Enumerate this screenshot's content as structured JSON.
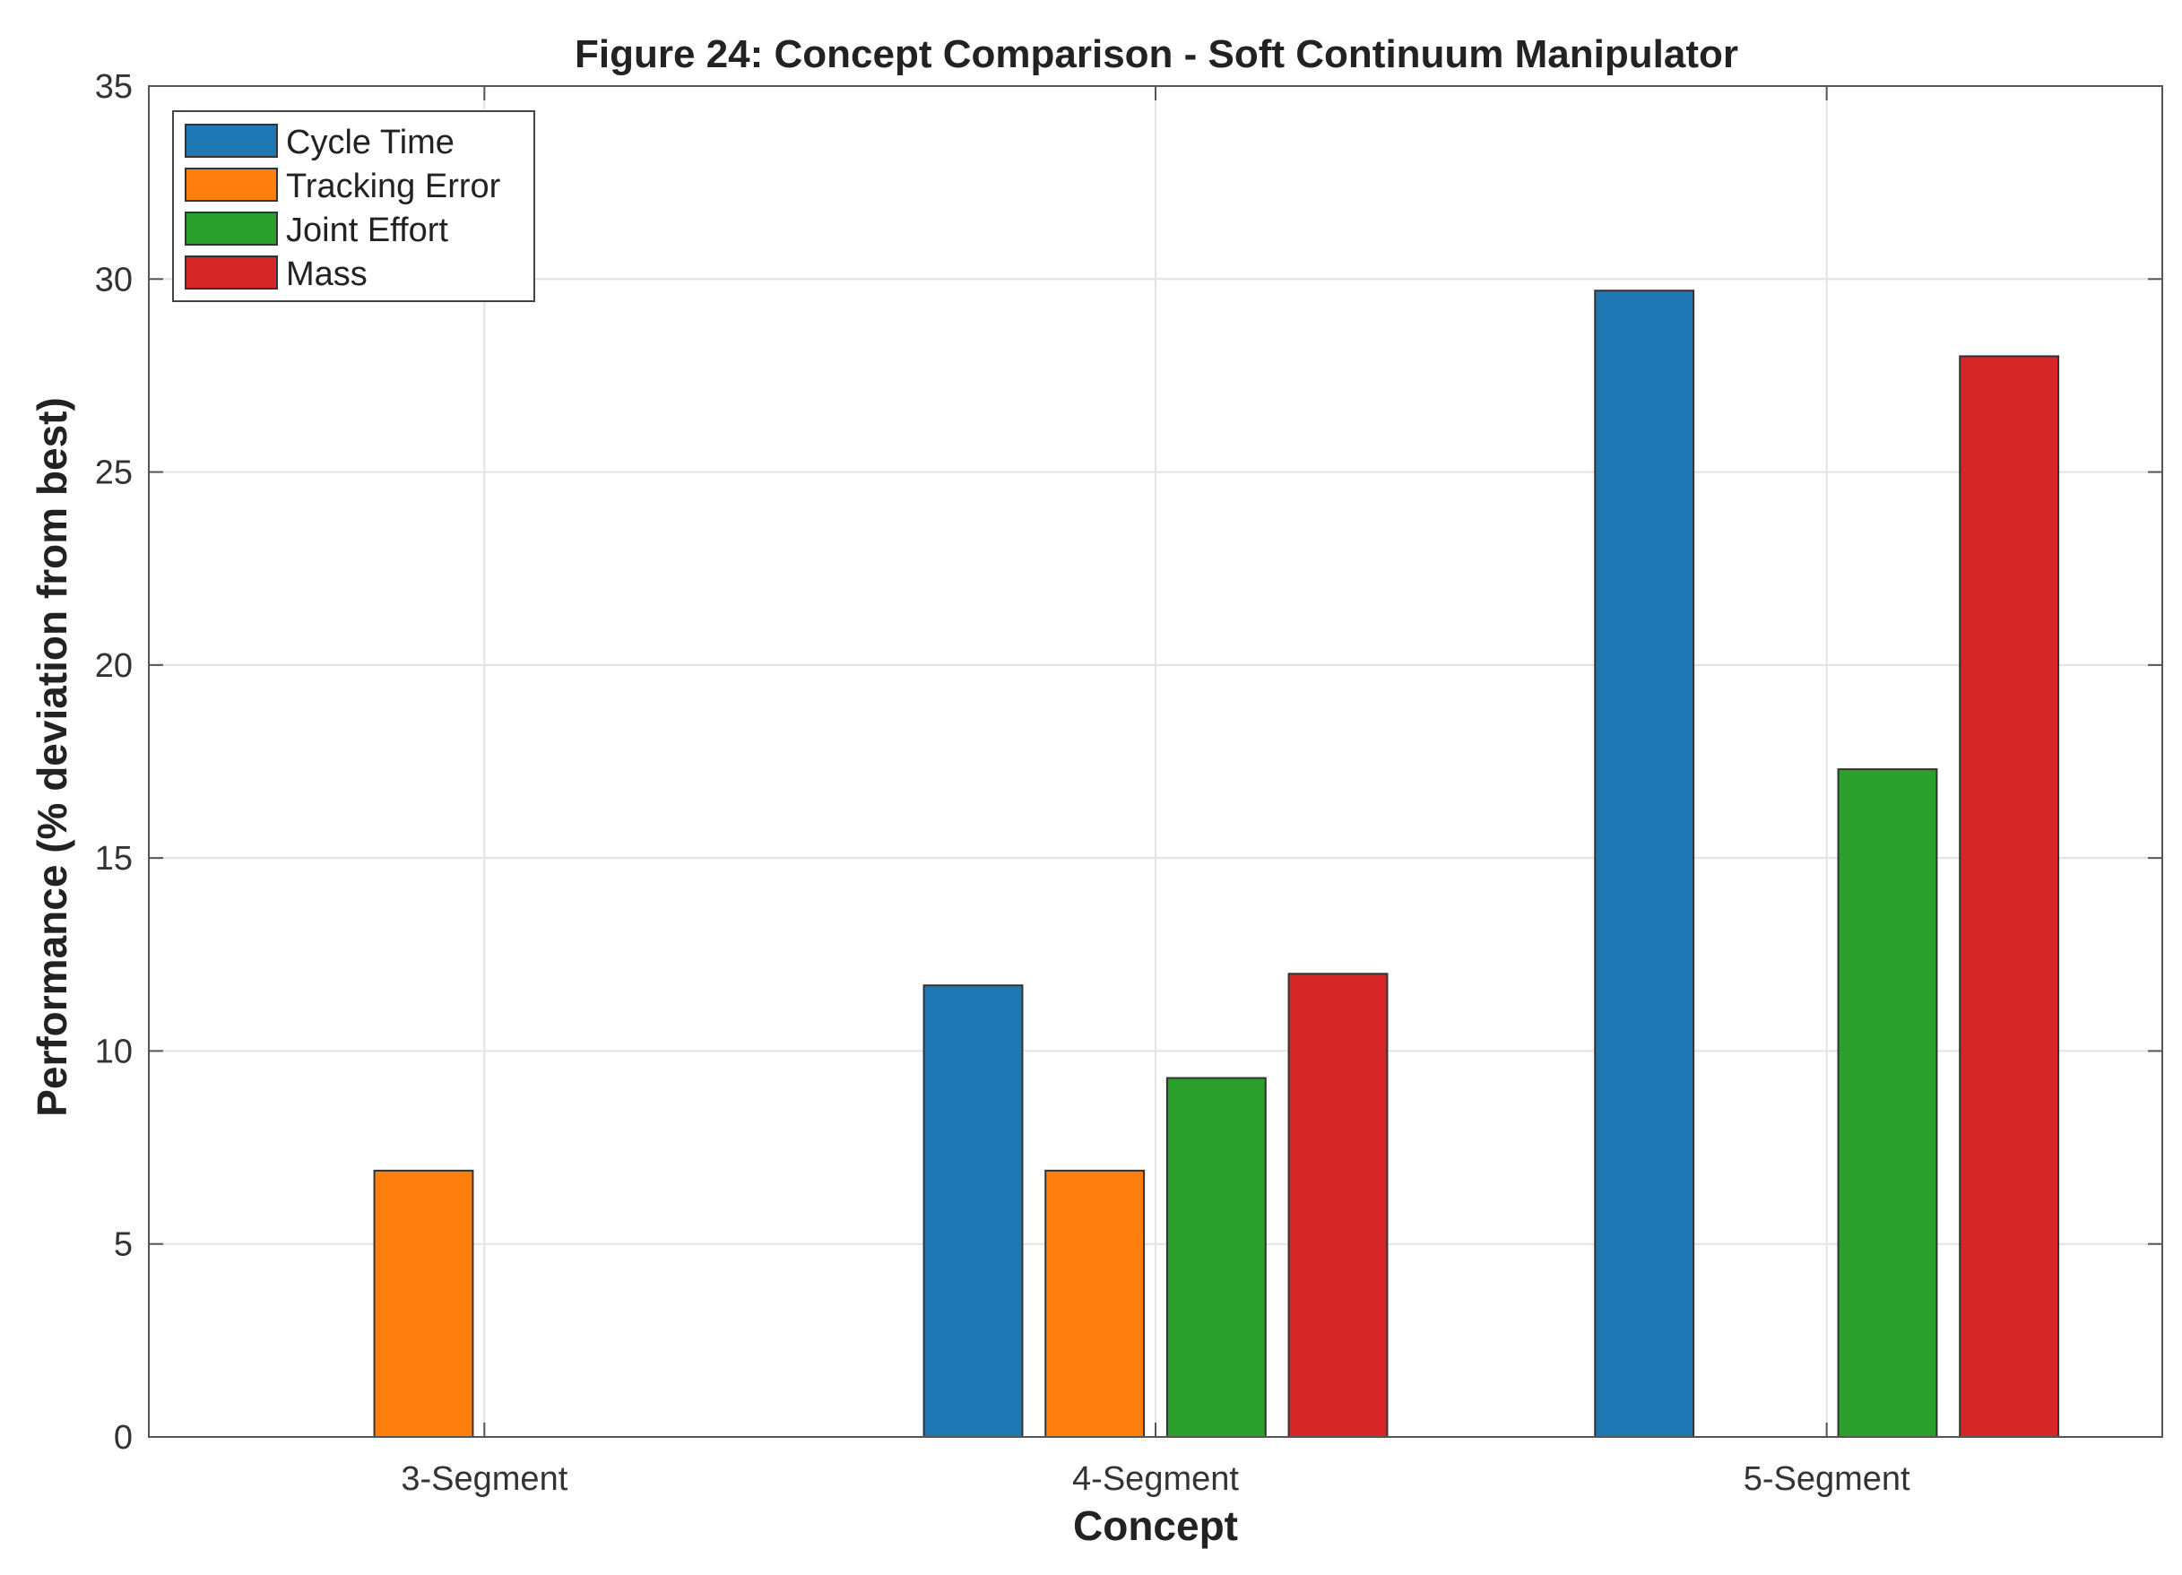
{
  "chart_data": {
    "type": "bar",
    "title": "Figure 24: Concept Comparison - Soft Continuum Manipulator",
    "xlabel": "Concept",
    "ylabel": "Performance (% deviation from best)",
    "categories": [
      "3-Segment",
      "4-Segment",
      "5-Segment"
    ],
    "series": [
      {
        "name": "Cycle Time",
        "color": "#1f77b4",
        "values": [
          0,
          11.7,
          29.7
        ]
      },
      {
        "name": "Tracking Error",
        "color": "#ff7f0e",
        "values": [
          6.9,
          6.9,
          0
        ]
      },
      {
        "name": "Joint Effort",
        "color": "#2ca02c",
        "values": [
          0,
          9.3,
          17.3
        ]
      },
      {
        "name": "Mass",
        "color": "#d62728",
        "values": [
          0,
          12.0,
          28.0
        ]
      }
    ],
    "ylim": [
      0,
      35
    ],
    "yticks": [
      0,
      5,
      10,
      15,
      20,
      25,
      30,
      35
    ],
    "grid": true,
    "legend_position": "top-left"
  }
}
